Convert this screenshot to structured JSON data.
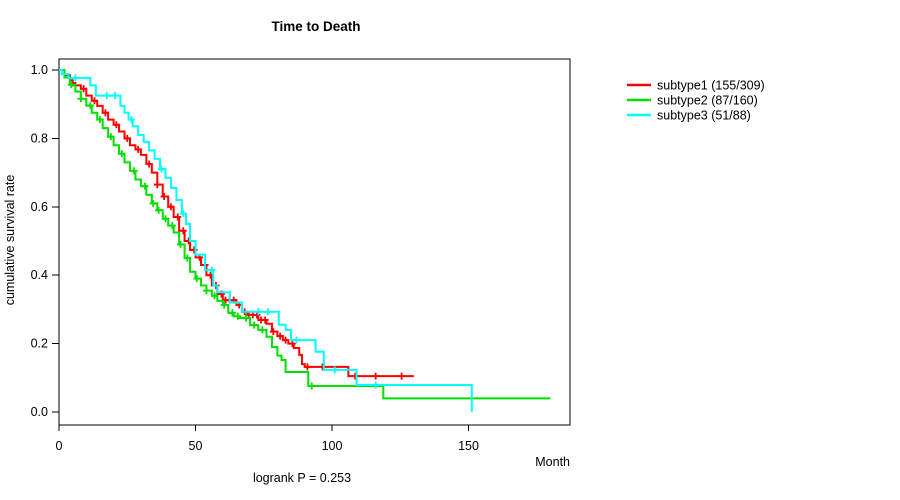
{
  "footnote": "logrank P = 0.253",
  "chart_data": {
    "type": "line",
    "subtype": "kaplan-meier-step",
    "title": "Time to Death",
    "xlabel": "Month",
    "ylabel": "cumulative survival rate",
    "xlim": [
      0,
      187
    ],
    "ylim": [
      0,
      1
    ],
    "grid": false,
    "legend_position": "right-outside",
    "x_ticks": [
      {
        "v": 0,
        "label": "0"
      },
      {
        "v": 50,
        "label": "50"
      },
      {
        "v": 100,
        "label": "100"
      },
      {
        "v": 150,
        "label": "150"
      }
    ],
    "y_ticks": [
      {
        "v": 0,
        "label": "0.0"
      },
      {
        "v": 0.2,
        "label": "0.2"
      },
      {
        "v": 0.4,
        "label": "0.4"
      },
      {
        "v": 0.6,
        "label": "0.6"
      },
      {
        "v": 0.8,
        "label": "0.8"
      },
      {
        "v": 1,
        "label": "1.0"
      }
    ],
    "series": [
      {
        "name": "subtype1 (155/309)",
        "color": "#FF0000",
        "end_month": 130,
        "steps": [
          [
            0,
            1.0
          ],
          [
            2,
            0.985
          ],
          [
            4,
            0.97
          ],
          [
            5,
            0.962
          ],
          [
            6,
            0.955
          ],
          [
            8,
            0.945
          ],
          [
            10,
            0.925
          ],
          [
            12,
            0.91
          ],
          [
            14,
            0.895
          ],
          [
            16,
            0.875
          ],
          [
            18,
            0.855
          ],
          [
            20,
            0.84
          ],
          [
            22,
            0.82
          ],
          [
            24,
            0.8
          ],
          [
            26,
            0.78
          ],
          [
            28,
            0.768
          ],
          [
            30,
            0.752
          ],
          [
            32,
            0.725
          ],
          [
            34,
            0.7
          ],
          [
            36,
            0.665
          ],
          [
            38,
            0.63
          ],
          [
            40,
            0.6
          ],
          [
            42,
            0.57
          ],
          [
            44,
            0.53
          ],
          [
            46,
            0.5
          ],
          [
            48,
            0.474
          ],
          [
            50,
            0.452
          ],
          [
            52,
            0.43
          ],
          [
            54,
            0.4
          ],
          [
            56,
            0.37
          ],
          [
            58,
            0.345
          ],
          [
            60,
            0.327
          ],
          [
            65,
            0.313
          ],
          [
            67,
            0.293
          ],
          [
            69,
            0.284
          ],
          [
            73,
            0.269
          ],
          [
            76,
            0.258
          ],
          [
            78,
            0.235
          ],
          [
            80,
            0.222
          ],
          [
            82,
            0.21
          ],
          [
            84,
            0.2
          ],
          [
            86,
            0.187
          ],
          [
            88,
            0.167
          ],
          [
            89,
            0.14
          ],
          [
            90,
            0.132
          ],
          [
            106,
            0.105
          ]
        ],
        "censor_months": [
          5,
          9,
          13,
          17,
          21,
          25,
          29,
          33,
          36,
          38.5,
          41,
          43.5,
          45.5,
          47.5,
          49.5,
          51.5,
          53.5,
          55.5,
          57.5,
          59.5,
          61,
          62.5,
          64,
          66,
          68,
          69.5,
          71,
          72.5,
          74,
          75.5,
          78.5,
          81,
          83,
          85.5,
          91,
          96.5,
          108.5,
          116,
          125.5
        ]
      },
      {
        "name": "subtype2 (87/160)",
        "color": "#00E000",
        "end_month": 180,
        "steps": [
          [
            0,
            1.0
          ],
          [
            2,
            0.978
          ],
          [
            4,
            0.957
          ],
          [
            6,
            0.937
          ],
          [
            8,
            0.916
          ],
          [
            10,
            0.896
          ],
          [
            12,
            0.875
          ],
          [
            14,
            0.855
          ],
          [
            16,
            0.83
          ],
          [
            18,
            0.805
          ],
          [
            20,
            0.78
          ],
          [
            22,
            0.755
          ],
          [
            24,
            0.73
          ],
          [
            26,
            0.705
          ],
          [
            28,
            0.68
          ],
          [
            30,
            0.66
          ],
          [
            32,
            0.635
          ],
          [
            34,
            0.61
          ],
          [
            36,
            0.59
          ],
          [
            38,
            0.565
          ],
          [
            40,
            0.545
          ],
          [
            42,
            0.525
          ],
          [
            44,
            0.49
          ],
          [
            46,
            0.45
          ],
          [
            48,
            0.41
          ],
          [
            50,
            0.39
          ],
          [
            52,
            0.37
          ],
          [
            54,
            0.355
          ],
          [
            56,
            0.34
          ],
          [
            58,
            0.325
          ],
          [
            60,
            0.313
          ],
          [
            62,
            0.29
          ],
          [
            64,
            0.28
          ],
          [
            66,
            0.275
          ],
          [
            70,
            0.254
          ],
          [
            73,
            0.24
          ],
          [
            76,
            0.22
          ],
          [
            78,
            0.19
          ],
          [
            80,
            0.165
          ],
          [
            81.5,
            0.152
          ],
          [
            83,
            0.117
          ],
          [
            91.3,
            0.076
          ],
          [
            118.8,
            0.04
          ]
        ],
        "censor_months": [
          4.5,
          8,
          11.5,
          15,
          19,
          23,
          27.5,
          31.5,
          34.5,
          36.5,
          39,
          41.5,
          44.5,
          47,
          50.5,
          54,
          57,
          60.5,
          63.5,
          65.5,
          68.5,
          71.5,
          74.5,
          92.6
        ]
      },
      {
        "name": "subtype3 (51/88)",
        "color": "#00FFFF",
        "end_month": 151.2,
        "steps": [
          [
            0,
            1.0
          ],
          [
            1,
            0.988
          ],
          [
            3.5,
            0.977
          ],
          [
            11.5,
            0.955
          ],
          [
            13.5,
            0.925
          ],
          [
            22.5,
            0.895
          ],
          [
            24,
            0.875
          ],
          [
            25.5,
            0.855
          ],
          [
            27,
            0.835
          ],
          [
            29,
            0.81
          ],
          [
            31,
            0.79
          ],
          [
            33,
            0.765
          ],
          [
            35,
            0.74
          ],
          [
            37,
            0.71
          ],
          [
            39,
            0.685
          ],
          [
            41,
            0.655
          ],
          [
            43,
            0.62
          ],
          [
            45,
            0.58
          ],
          [
            46.5,
            0.55
          ],
          [
            48,
            0.5
          ],
          [
            50,
            0.46
          ],
          [
            53.5,
            0.415
          ],
          [
            56.5,
            0.37
          ],
          [
            58,
            0.35
          ],
          [
            62.6,
            0.32
          ],
          [
            67,
            0.293
          ],
          [
            80.5,
            0.255
          ],
          [
            83,
            0.24
          ],
          [
            85,
            0.21
          ],
          [
            94,
            0.176
          ],
          [
            97,
            0.123
          ],
          [
            109,
            0.079
          ],
          [
            151.2,
            0.0
          ]
        ],
        "censor_months": [
          6,
          17.5,
          20.5,
          26.5,
          37.5,
          45.5,
          56,
          73,
          76.5,
          87,
          101,
          116
        ]
      }
    ]
  }
}
